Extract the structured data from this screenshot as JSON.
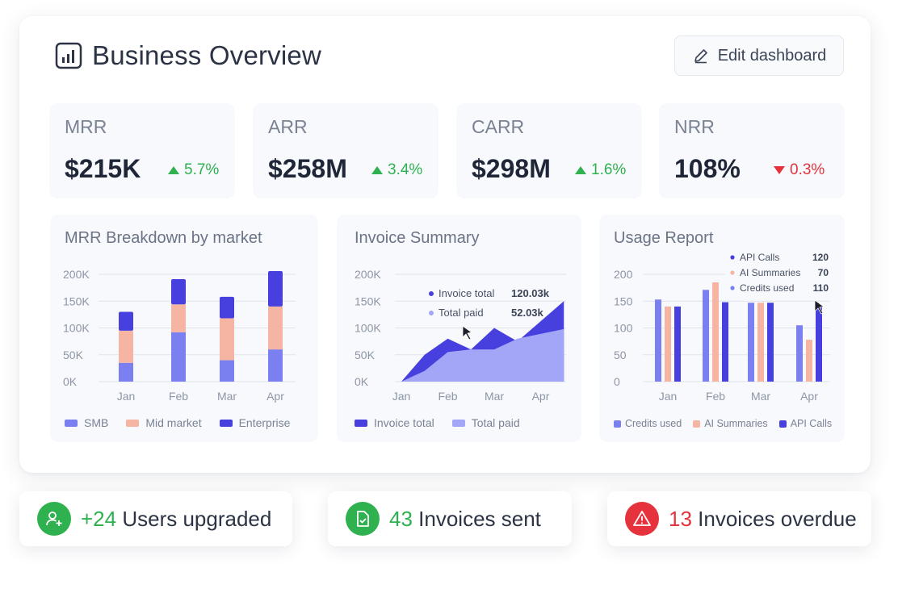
{
  "header": {
    "title": "Business Overview",
    "edit_label": "Edit dashboard"
  },
  "kpis": [
    {
      "label": "MRR",
      "value": "$215K",
      "change": "5.7%",
      "direction": "up"
    },
    {
      "label": "ARR",
      "value": "$258M",
      "change": "3.4%",
      "direction": "up"
    },
    {
      "label": "CARR",
      "value": "$298M",
      "change": "1.6%",
      "direction": "up"
    },
    {
      "label": "NRR",
      "value": "108%",
      "change": "0.3%",
      "direction": "down"
    }
  ],
  "colors": {
    "smb": "#7a80f0",
    "mid_market": "#f6b4a3",
    "enterprise": "#4740de",
    "invoice_total": "#4740de",
    "total_paid": "#a3a5f7",
    "green": "#2fb14f",
    "red": "#e5323c"
  },
  "charts": {
    "mrr": {
      "title": "MRR Breakdown by market",
      "legend": [
        "SMB",
        "Mid market",
        "Enterprise"
      ]
    },
    "invoice": {
      "title": "Invoice Summary",
      "legend": [
        "Invoice total",
        "Total paid"
      ],
      "tooltip": [
        {
          "label": "Invoice total",
          "value": "120.03k"
        },
        {
          "label": "Total paid",
          "value": "52.03k"
        }
      ]
    },
    "usage": {
      "title": "Usage Report",
      "legend": [
        "Credits used",
        "AI Summaries",
        "API Calls"
      ],
      "tooltip": [
        {
          "label": "API Calls",
          "value": "120"
        },
        {
          "label": "AI Summaries",
          "value": "70"
        },
        {
          "label": "Credits used",
          "value": "110"
        }
      ]
    }
  },
  "chart_data": [
    {
      "type": "bar",
      "title": "MRR Breakdown by market",
      "stacked": true,
      "categories": [
        "Jan",
        "Feb",
        "Mar",
        "Apr"
      ],
      "y_ticks": [
        "0K",
        "50K",
        "100K",
        "150K",
        "200K"
      ],
      "ylim": [
        0,
        200000
      ],
      "series": [
        {
          "name": "SMB",
          "values": [
            35000,
            92000,
            40000,
            60000
          ]
        },
        {
          "name": "Mid market",
          "values": [
            60000,
            52000,
            78000,
            80000
          ]
        },
        {
          "name": "Enterprise",
          "values": [
            35000,
            47000,
            40000,
            66000
          ]
        }
      ],
      "grid": true,
      "legend": "bottom"
    },
    {
      "type": "area",
      "title": "Invoice Summary",
      "categories": [
        "Jan",
        "Feb",
        "Mar",
        "Apr"
      ],
      "y_ticks": [
        "0K",
        "50K",
        "100K",
        "150K",
        "200K"
      ],
      "ylim": [
        0,
        200000
      ],
      "x": [
        0,
        0.5,
        1.0,
        1.5,
        2.0,
        2.5,
        3.5
      ],
      "series": [
        {
          "name": "Invoice total",
          "values": [
            0,
            50000,
            80000,
            60000,
            100000,
            75000,
            150000
          ]
        },
        {
          "name": "Total paid",
          "values": [
            0,
            20000,
            55000,
            60000,
            60000,
            80000,
            98000
          ]
        }
      ],
      "grid": true,
      "legend": "bottom"
    },
    {
      "type": "bar",
      "title": "Usage Report",
      "categories": [
        "Jan",
        "Feb",
        "Mar",
        "Apr"
      ],
      "y_ticks": [
        "0",
        "50",
        "100",
        "150",
        "200"
      ],
      "ylim": [
        0,
        200
      ],
      "series": [
        {
          "name": "Credits used",
          "values": [
            153,
            171,
            147,
            105
          ]
        },
        {
          "name": "AI Summaries",
          "values": [
            140,
            185,
            147,
            78
          ]
        },
        {
          "name": "API Calls",
          "values": [
            140,
            148,
            147,
            140
          ]
        }
      ],
      "grid": true,
      "legend": "bottom"
    }
  ],
  "pills": [
    {
      "num": "+24",
      "label": "Users upgraded",
      "tone": "green"
    },
    {
      "num": "43",
      "label": "Invoices sent",
      "tone": "green"
    },
    {
      "num": "13",
      "label": "Invoices overdue",
      "tone": "red"
    }
  ]
}
